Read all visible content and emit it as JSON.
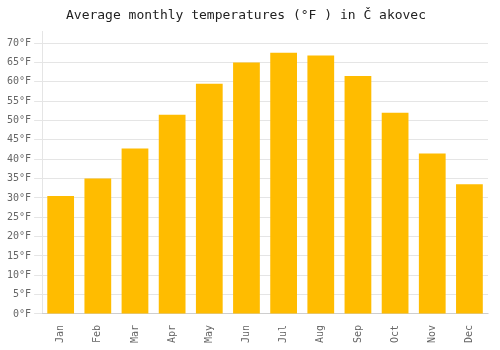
{
  "chart_data": {
    "type": "bar",
    "title": "Average monthly temperatures (°F ) in Č akovec",
    "categories": [
      "Jan",
      "Feb",
      "Mar",
      "Apr",
      "May",
      "Jun",
      "Jul",
      "Aug",
      "Sep",
      "Oct",
      "Nov",
      "Dec"
    ],
    "values": [
      30.5,
      35.0,
      42.8,
      51.5,
      59.5,
      65.0,
      67.5,
      66.8,
      61.5,
      52.0,
      41.5,
      33.5
    ],
    "color": "#FFBC00",
    "ylim": [
      0,
      73
    ],
    "yticks": [
      {
        "value": 0,
        "label": "0°F"
      },
      {
        "value": 5,
        "label": "5°F"
      },
      {
        "value": 10,
        "label": "10°F"
      },
      {
        "value": 15,
        "label": "15°F"
      },
      {
        "value": 20,
        "label": "20°F"
      },
      {
        "value": 25,
        "label": "25°F"
      },
      {
        "value": 30,
        "label": "30°F"
      },
      {
        "value": 35,
        "label": "35°F"
      },
      {
        "value": 40,
        "label": "40°F"
      },
      {
        "value": 45,
        "label": "45°F"
      },
      {
        "value": 50,
        "label": "50°F"
      },
      {
        "value": 55,
        "label": "55°F"
      },
      {
        "value": 60,
        "label": "60°F"
      },
      {
        "value": 65,
        "label": "65°F"
      },
      {
        "value": 70,
        "label": "70°F"
      }
    ],
    "grid": true
  }
}
